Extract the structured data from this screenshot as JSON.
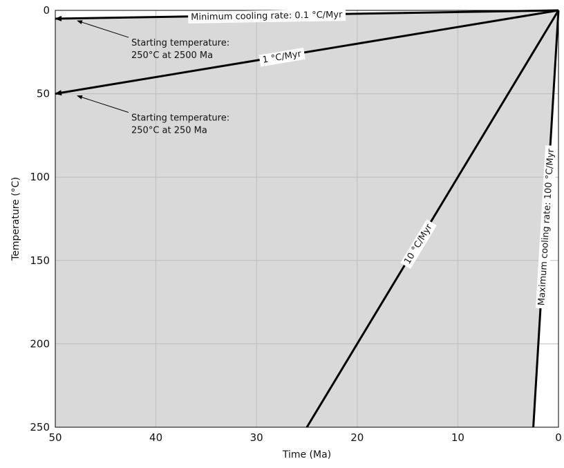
{
  "chart_data": {
    "type": "line",
    "xlabel": "Time (Ma)",
    "ylabel": "Temperature (°C)",
    "xlim": [
      50,
      0
    ],
    "ylim": [
      0,
      250
    ],
    "x_reversed": true,
    "y_inverted": true,
    "grid": true,
    "xticks": [
      "50",
      "40",
      "30",
      "20",
      "10",
      "0"
    ],
    "yticks": [
      "0",
      "50",
      "100",
      "150",
      "200",
      "250"
    ],
    "colors": {
      "fill": "#d9d9d9",
      "line": "#000000",
      "grid": "#bdbdbd",
      "background": "#ffffff"
    },
    "series": [
      {
        "label": "Minimum cooling rate: 0.1 °C/Myr",
        "x": [
          0,
          50
        ],
        "y": [
          0,
          5
        ],
        "arrow_at_end": true
      },
      {
        "label": "1 °C/Myr",
        "x": [
          0,
          50
        ],
        "y": [
          0,
          50
        ],
        "arrow_at_end": true
      },
      {
        "label": "10 °C/Myr",
        "x": [
          0,
          25
        ],
        "y": [
          0,
          250
        ],
        "arrow_at_end": false
      },
      {
        "label": "Maximum cooling rate: 100 °C/Myr",
        "x": [
          0,
          2.5
        ],
        "y": [
          0,
          250
        ],
        "arrow_at_end": false
      }
    ],
    "annotations": [
      {
        "line1": "Starting temperature:",
        "line2": "250°C at 2500 Ma",
        "points_to": [
          50,
          5
        ]
      },
      {
        "line1": "Starting temperature:",
        "line2": "250°C at 250 Ma",
        "points_to": [
          50,
          50
        ]
      }
    ]
  }
}
